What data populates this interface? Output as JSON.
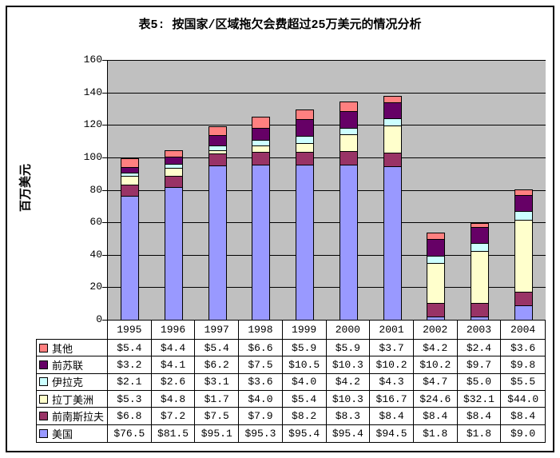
{
  "title": "表5:  按国家/区域拖欠会费超过25万美元的情况分析",
  "chart_data": {
    "type": "bar",
    "stacked": true,
    "title": "表5:  按国家/区域拖欠会费超过25万美元的情况分析",
    "xlabel": "",
    "ylabel": "百万美元",
    "ylim": [
      0,
      160
    ],
    "yticks": [
      0,
      20,
      40,
      60,
      80,
      100,
      120,
      140,
      160
    ],
    "grid": "horizontal",
    "plot_background": "#C0C0C0",
    "legend_position": "table-left-bottom",
    "categories": [
      "1995",
      "1996",
      "1997",
      "1998",
      "1999",
      "2000",
      "2001",
      "2002",
      "2003",
      "2004"
    ],
    "series": [
      {
        "name": "美国",
        "color": "#9999FF",
        "values": [
          76.5,
          81.5,
          95.1,
          95.3,
          95.4,
          95.4,
          94.5,
          1.8,
          1.8,
          9.0
        ]
      },
      {
        "name": "前南斯拉夫",
        "color": "#993366",
        "values": [
          6.8,
          7.2,
          7.5,
          7.9,
          8.2,
          8.3,
          8.4,
          8.4,
          8.4,
          8.4
        ]
      },
      {
        "name": "拉丁美洲",
        "color": "#FFFFCC",
        "values": [
          5.3,
          4.8,
          1.7,
          4.0,
          5.4,
          10.3,
          16.7,
          24.6,
          32.1,
          44.0
        ]
      },
      {
        "name": "伊拉克",
        "color": "#CCFFFF",
        "values": [
          2.1,
          2.6,
          3.1,
          3.6,
          4.0,
          4.2,
          4.3,
          4.7,
          5.0,
          5.5
        ]
      },
      {
        "name": "前苏联",
        "color": "#660066",
        "values": [
          3.2,
          4.1,
          6.2,
          7.5,
          10.5,
          10.3,
          10.2,
          10.2,
          9.7,
          9.8
        ]
      },
      {
        "name": "其他",
        "color": "#FF8080",
        "values": [
          5.4,
          4.4,
          5.4,
          6.6,
          5.9,
          5.9,
          3.7,
          4.2,
          2.4,
          3.6
        ]
      }
    ]
  },
  "table": {
    "rows": [
      {
        "label": "其他",
        "color": "#FF8080",
        "values": [
          "$5.4",
          "$4.4",
          "$5.4",
          "$6.6",
          "$5.9",
          "$5.9",
          "$3.7",
          "$4.2",
          "$2.4",
          "$3.6"
        ]
      },
      {
        "label": "前苏联",
        "color": "#660066",
        "values": [
          "$3.2",
          "$4.1",
          "$6.2",
          "$7.5",
          "$10.5",
          "$10.3",
          "$10.2",
          "$10.2",
          "$9.7",
          "$9.8"
        ]
      },
      {
        "label": "伊拉克",
        "color": "#CCFFFF",
        "values": [
          "$2.1",
          "$2.6",
          "$3.1",
          "$3.6",
          "$4.0",
          "$4.2",
          "$4.3",
          "$4.7",
          "$5.0",
          "$5.5"
        ]
      },
      {
        "label": "拉丁美洲",
        "color": "#FFFFCC",
        "values": [
          "$5.3",
          "$4.8",
          "$1.7",
          "$4.0",
          "$5.4",
          "$10.3",
          "$16.7",
          "$24.6",
          "$32.1",
          "$44.0"
        ]
      },
      {
        "label": "前南斯拉夫",
        "color": "#993366",
        "values": [
          "$6.8",
          "$7.2",
          "$7.5",
          "$7.9",
          "$8.2",
          "$8.3",
          "$8.4",
          "$8.4",
          "$8.4",
          "$8.4"
        ]
      },
      {
        "label": "美国",
        "color": "#9999FF",
        "values": [
          "$76.5",
          "$81.5",
          "$95.1",
          "$95.3",
          "$95.4",
          "$95.4",
          "$94.5",
          "$1.8",
          "$1.8",
          "$9.0"
        ]
      }
    ]
  }
}
